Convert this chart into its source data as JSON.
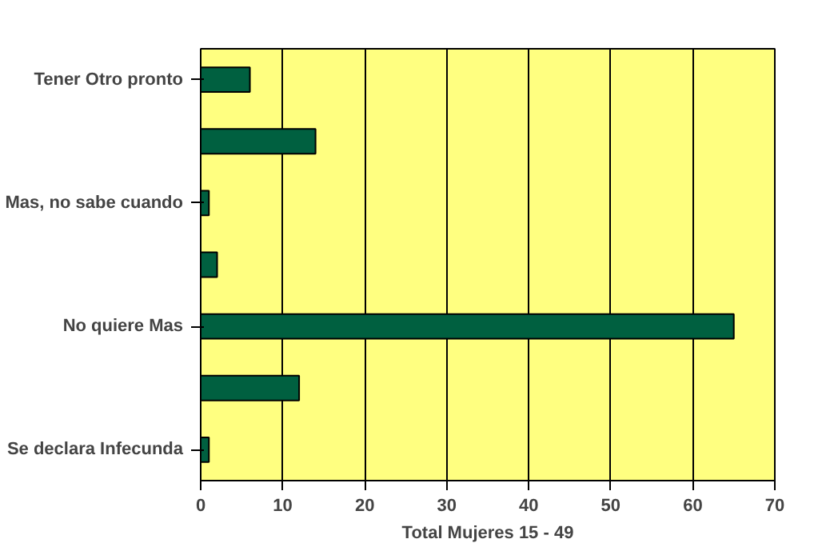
{
  "chart_data": {
    "type": "bar",
    "orientation": "horizontal",
    "xlabel": "Total Mujeres 15 - 49",
    "categories": [
      "Tener Otro pronto",
      null,
      "Mas, no sabe cuando",
      null,
      "No quiere Mas",
      null,
      "Se declara Infecunda"
    ],
    "values": [
      6,
      14,
      1,
      2,
      65,
      12,
      1
    ],
    "color": "#006040",
    "xlim": [
      0,
      70
    ],
    "xticks": [
      0,
      10,
      20,
      30,
      40,
      50,
      60,
      70
    ],
    "grid": "x"
  }
}
